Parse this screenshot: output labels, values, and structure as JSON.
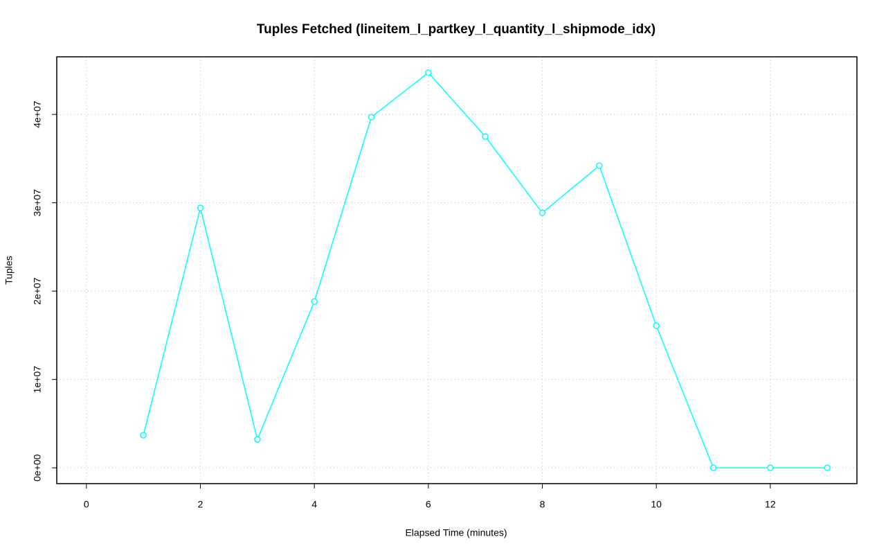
{
  "chart_data": {
    "type": "line",
    "title": "Tuples Fetched (lineitem_l_partkey_l_quantity_l_shipmode_idx)",
    "x_label": "Elapsed Time (minutes)",
    "y_label": "Tuples",
    "x": [
      1,
      2,
      3,
      4,
      5,
      6,
      7,
      8,
      9,
      10,
      11,
      12,
      13
    ],
    "series": [
      {
        "name": "Tuples",
        "color": "#00ffff",
        "values": [
          3690000,
          29410000,
          3220000,
          18820000,
          39690000,
          44730000,
          37490000,
          28860000,
          34200000,
          16080000,
          0,
          0,
          0
        ]
      }
    ],
    "xlim": [
      -0.52,
      13.52
    ],
    "ylim": [
      -1790000,
      46520000
    ],
    "xticks": [
      0,
      2,
      4,
      6,
      8,
      10,
      12
    ],
    "yticks": [
      {
        "value": 0,
        "label": "0e+00"
      },
      {
        "value": 10000000,
        "label": "1e+07"
      },
      {
        "value": 20000000,
        "label": "2e+07"
      },
      {
        "value": 30000000,
        "label": "3e+07"
      },
      {
        "value": 40000000,
        "label": "4e+07"
      }
    ],
    "grid": true
  }
}
